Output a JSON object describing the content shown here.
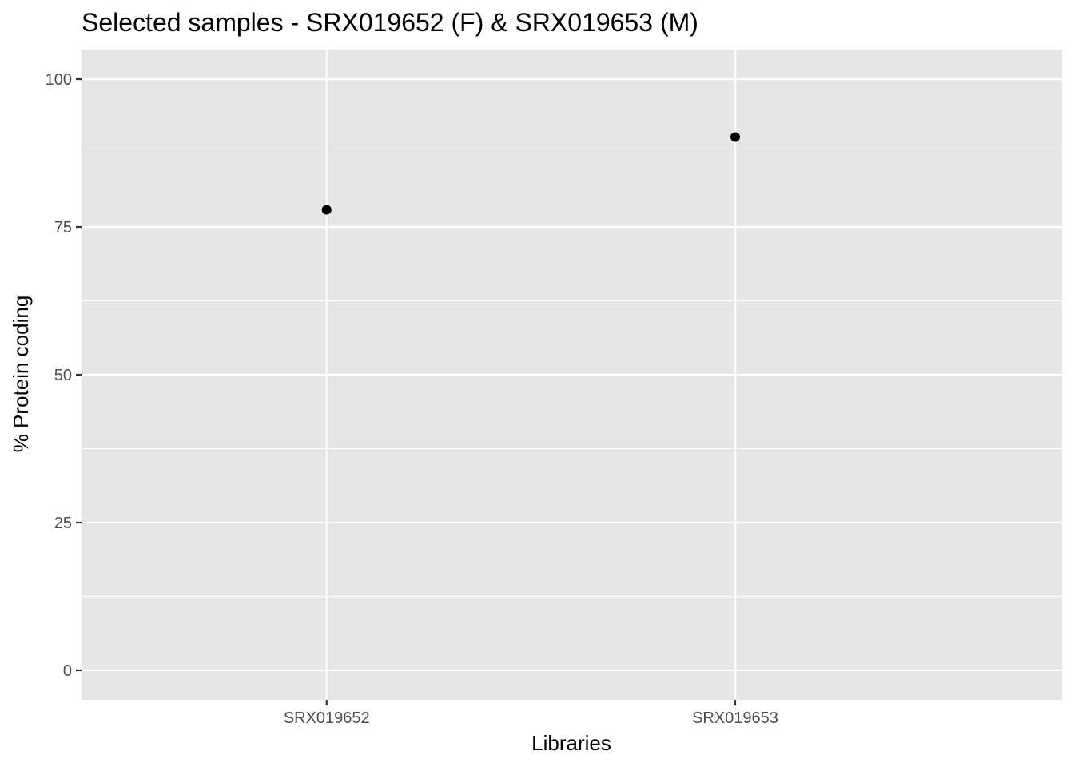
{
  "chart_data": {
    "type": "scatter",
    "title": "Selected samples - SRX019652 (F) & SRX019653 (M)",
    "xlabel": "Libraries",
    "ylabel": "% Protein coding",
    "categories": [
      "SRX019652",
      "SRX019653"
    ],
    "values": [
      77.9,
      90.2
    ],
    "ylim": [
      -5,
      105
    ],
    "y_ticks": [
      "0",
      "25",
      "50",
      "75",
      "100"
    ],
    "grid": true,
    "legend": "none",
    "colors": {
      "panel_background": "#e5e5e5",
      "grid_line": "#ffffff",
      "point": "#000000",
      "tick_mark": "#333333",
      "tick_label": "#4d4d4d"
    }
  }
}
